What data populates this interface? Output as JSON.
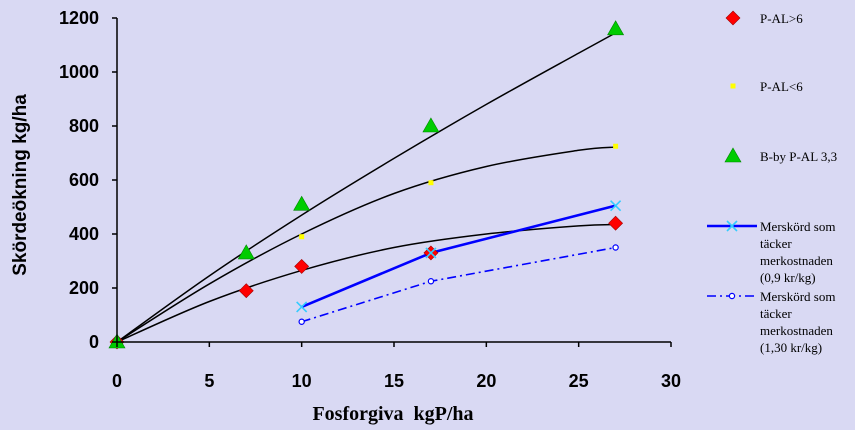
{
  "chart_data": {
    "type": "scatter",
    "xlabel": "Fosforgiva  kgP/ha",
    "ylabel": "Skördeökning kg/ha",
    "xlim": [
      0,
      30
    ],
    "ylim": [
      0,
      1200
    ],
    "xticks": [
      "0",
      "5",
      "10",
      "15",
      "20",
      "25",
      "30"
    ],
    "yticks": [
      "0",
      "200",
      "400",
      "600",
      "800",
      "1000",
      "1200"
    ],
    "grid": false,
    "legend_position": "right",
    "series": [
      {
        "name": "P-AL>6",
        "kind": "markers",
        "marker": "diamond",
        "color": "#ff0000",
        "x": [
          0,
          7,
          10,
          17,
          27
        ],
        "y": [
          0,
          190,
          280,
          330,
          440
        ],
        "trend_x": [
          0,
          5,
          10,
          15,
          20,
          25,
          27
        ],
        "trend_y": [
          0,
          150,
          265,
          350,
          400,
          430,
          435
        ]
      },
      {
        "name": "P-AL<6",
        "kind": "markers",
        "marker": "square",
        "color": "#ffff00",
        "x": [
          0,
          7,
          10,
          17,
          27
        ],
        "y": [
          0,
          320,
          390,
          590,
          725
        ],
        "trend_x": [
          0,
          5,
          10,
          15,
          20,
          25,
          27
        ],
        "trend_y": [
          0,
          215,
          400,
          550,
          650,
          710,
          722
        ]
      },
      {
        "name": "B-by P-AL 3,3",
        "kind": "markers",
        "marker": "triangle",
        "color": "#00cc00",
        "x": [
          0,
          7,
          10,
          17,
          27
        ],
        "y": [
          0,
          330,
          510,
          800,
          1160
        ],
        "trend_x": [
          0,
          5,
          10,
          15,
          20,
          25,
          27
        ],
        "trend_y": [
          0,
          245,
          470,
          680,
          880,
          1070,
          1145
        ]
      },
      {
        "name": "Merskörd som täcker merkostnaden (0,9 kr/kg)",
        "kind": "line",
        "marker": "x",
        "color": "#0000ff",
        "dash": "solid",
        "x": [
          10,
          17,
          27
        ],
        "y": [
          130,
          330,
          505
        ]
      },
      {
        "name": "Merskörd som täcker merkostnaden (1,30 kr/kg)",
        "kind": "line",
        "marker": "circle",
        "color": "#0000ff",
        "dash": "dashdot",
        "x": [
          10,
          17,
          27
        ],
        "y": [
          75,
          225,
          350
        ]
      }
    ]
  },
  "legend": [
    {
      "lines": [
        "P-AL>6"
      ]
    },
    {
      "lines": [
        "P-AL<6"
      ]
    },
    {
      "lines": [
        "B-by P-AL 3,3"
      ]
    },
    {
      "lines": [
        "Merskörd som",
        "täcker",
        "merkostnaden",
        "(0,9 kr/kg)"
      ]
    },
    {
      "lines": [
        "Merskörd som",
        "täcker",
        "merkostnaden",
        "(1,30 kr/kg)"
      ]
    }
  ]
}
